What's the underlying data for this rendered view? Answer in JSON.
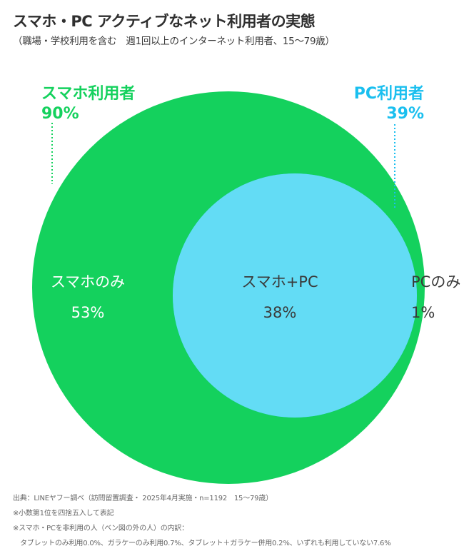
{
  "title": "スマホ・PC アクティブなネット利用者の実態",
  "subtitle": "（職場・学校利用を含む　週1回以上のインターネット利用者、15～79歳）",
  "colors": {
    "smartphone": "#14D15D",
    "pc": "#1ABFEF",
    "overlap": "#63DCF5",
    "text_dark": "#3a3a3a",
    "text_light": "#ffffff"
  },
  "chart_data": {
    "type": "venn",
    "sets": [
      {
        "name": "スマホ利用者",
        "value": "90%"
      },
      {
        "name": "PC利用者",
        "value": "39%"
      }
    ],
    "regions": [
      {
        "label": "スマホのみ",
        "value": "53%"
      },
      {
        "label": "スマホ+PC",
        "value": "38%"
      },
      {
        "label": "PCのみ",
        "value": "1%"
      }
    ]
  },
  "notes": {
    "source": "出典：LINEヤフー調べ（訪問留置調査・ 2025年4月実施・n=1192　15～79歳）",
    "rounding": "※小数第1位を四捨五入して表記",
    "breakdown_heading": "※スマホ・PCを非利用の人（ベン図の外の人）の内訳：",
    "breakdown_detail": "タブレットのみ利用0.0%、ガラケーのみ利用0.7%、タブレット＋ガラケー併用0.2%、いずれも利用していない7.6%"
  }
}
